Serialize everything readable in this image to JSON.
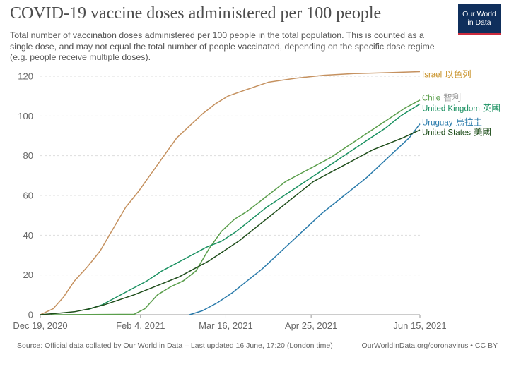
{
  "header": {
    "title": "COVID-19 vaccine doses administered per 100 people",
    "subtitle": "Total number of vaccination doses administered per 100 people in the total population. This is counted as a single dose, and may not equal the total number of people vaccinated, depending on the specific dose regime (e.g. people receive multiple doses).",
    "logo_line1": "Our World",
    "logo_line2": "in Data"
  },
  "footer": {
    "source": "Source: Official data collated by Our World in Data – Last updated 16 June, 17:20 (London time)",
    "credit": "OurWorldInData.org/coronavirus • CC BY"
  },
  "colors": {
    "israel": "#c5915f",
    "chile": "#5a9e4b",
    "uk": "#1a9161",
    "uruguay": "#2a7bab",
    "us": "#1e4d1a",
    "israel_label": "#c9932a",
    "chile_cjk": "#999999",
    "grid": "#dddddd",
    "axis": "#999999"
  },
  "chart_data": {
    "type": "line",
    "x_ticks": [
      "Dec 19, 2020",
      "Feb 4, 2021",
      "Mar 16, 2021",
      "Apr 25, 2021",
      "Jun 15, 2021"
    ],
    "x_range": [
      "2020-12-19",
      "2021-06-15"
    ],
    "ylim": [
      0,
      120
    ],
    "y_ticks": [
      0,
      20,
      40,
      60,
      80,
      100,
      120
    ],
    "grid": "horizontal dashed",
    "series": [
      {
        "name": "Israel",
        "name_cjk": "以色列",
        "values": [
          {
            "x": "2020-12-19",
            "y": 0
          },
          {
            "x": "2020-12-25",
            "y": 3
          },
          {
            "x": "2020-12-30",
            "y": 9
          },
          {
            "x": "2021-01-04",
            "y": 17
          },
          {
            "x": "2021-01-10",
            "y": 24
          },
          {
            "x": "2021-01-16",
            "y": 32
          },
          {
            "x": "2021-01-22",
            "y": 43
          },
          {
            "x": "2021-01-28",
            "y": 54
          },
          {
            "x": "2021-02-03",
            "y": 62
          },
          {
            "x": "2021-02-09",
            "y": 71
          },
          {
            "x": "2021-02-15",
            "y": 80
          },
          {
            "x": "2021-02-21",
            "y": 89
          },
          {
            "x": "2021-02-27",
            "y": 95
          },
          {
            "x": "2021-03-05",
            "y": 101
          },
          {
            "x": "2021-03-11",
            "y": 106
          },
          {
            "x": "2021-03-17",
            "y": 110
          },
          {
            "x": "2021-03-25",
            "y": 113
          },
          {
            "x": "2021-04-05",
            "y": 117
          },
          {
            "x": "2021-04-18",
            "y": 119
          },
          {
            "x": "2021-05-01",
            "y": 120.5
          },
          {
            "x": "2021-05-15",
            "y": 121.3
          },
          {
            "x": "2021-06-01",
            "y": 121.8
          },
          {
            "x": "2021-06-15",
            "y": 122.3
          }
        ]
      },
      {
        "name": "Chile",
        "name_cjk": "智利",
        "values": [
          {
            "x": "2020-12-24",
            "y": 0
          },
          {
            "x": "2021-02-01",
            "y": 0.2
          },
          {
            "x": "2021-02-06",
            "y": 3
          },
          {
            "x": "2021-02-12",
            "y": 10
          },
          {
            "x": "2021-02-18",
            "y": 14
          },
          {
            "x": "2021-02-24",
            "y": 17
          },
          {
            "x": "2021-03-02",
            "y": 22
          },
          {
            "x": "2021-03-08",
            "y": 33
          },
          {
            "x": "2021-03-14",
            "y": 42
          },
          {
            "x": "2021-03-20",
            "y": 48
          },
          {
            "x": "2021-03-26",
            "y": 52
          },
          {
            "x": "2021-04-01",
            "y": 57
          },
          {
            "x": "2021-04-07",
            "y": 62
          },
          {
            "x": "2021-04-13",
            "y": 67
          },
          {
            "x": "2021-04-20",
            "y": 71
          },
          {
            "x": "2021-04-27",
            "y": 75
          },
          {
            "x": "2021-05-04",
            "y": 79
          },
          {
            "x": "2021-05-11",
            "y": 84
          },
          {
            "x": "2021-05-18",
            "y": 89
          },
          {
            "x": "2021-05-25",
            "y": 94
          },
          {
            "x": "2021-06-01",
            "y": 99
          },
          {
            "x": "2021-06-08",
            "y": 104
          },
          {
            "x": "2021-06-15",
            "y": 108
          }
        ]
      },
      {
        "name": "United Kingdom",
        "name_cjk": "英國",
        "values": [
          {
            "x": "2021-01-10",
            "y": 2.5
          },
          {
            "x": "2021-01-17",
            "y": 5
          },
          {
            "x": "2021-01-24",
            "y": 9
          },
          {
            "x": "2021-01-31",
            "y": 13
          },
          {
            "x": "2021-02-07",
            "y": 17
          },
          {
            "x": "2021-02-14",
            "y": 22
          },
          {
            "x": "2021-02-21",
            "y": 26
          },
          {
            "x": "2021-02-28",
            "y": 30
          },
          {
            "x": "2021-03-07",
            "y": 34
          },
          {
            "x": "2021-03-14",
            "y": 37
          },
          {
            "x": "2021-03-21",
            "y": 42
          },
          {
            "x": "2021-03-28",
            "y": 48
          },
          {
            "x": "2021-04-04",
            "y": 54
          },
          {
            "x": "2021-04-11",
            "y": 59
          },
          {
            "x": "2021-04-18",
            "y": 64
          },
          {
            "x": "2021-04-25",
            "y": 69
          },
          {
            "x": "2021-05-02",
            "y": 74
          },
          {
            "x": "2021-05-09",
            "y": 79
          },
          {
            "x": "2021-05-16",
            "y": 84
          },
          {
            "x": "2021-05-23",
            "y": 89
          },
          {
            "x": "2021-05-30",
            "y": 94
          },
          {
            "x": "2021-06-06",
            "y": 100
          },
          {
            "x": "2021-06-15",
            "y": 106
          }
        ]
      },
      {
        "name": "Uruguay",
        "name_cjk": "烏拉圭",
        "values": [
          {
            "x": "2021-02-27",
            "y": 0
          },
          {
            "x": "2021-03-05",
            "y": 2
          },
          {
            "x": "2021-03-12",
            "y": 6
          },
          {
            "x": "2021-03-19",
            "y": 11
          },
          {
            "x": "2021-03-26",
            "y": 17
          },
          {
            "x": "2021-04-02",
            "y": 23
          },
          {
            "x": "2021-04-09",
            "y": 30
          },
          {
            "x": "2021-04-16",
            "y": 37
          },
          {
            "x": "2021-04-23",
            "y": 44
          },
          {
            "x": "2021-04-30",
            "y": 51
          },
          {
            "x": "2021-05-07",
            "y": 57
          },
          {
            "x": "2021-05-14",
            "y": 63
          },
          {
            "x": "2021-05-21",
            "y": 69
          },
          {
            "x": "2021-05-28",
            "y": 76
          },
          {
            "x": "2021-06-04",
            "y": 83
          },
          {
            "x": "2021-06-10",
            "y": 89
          },
          {
            "x": "2021-06-15",
            "y": 96
          }
        ]
      },
      {
        "name": "United States",
        "name_cjk": "美國",
        "values": [
          {
            "x": "2020-12-19",
            "y": 0
          },
          {
            "x": "2020-12-28",
            "y": 0.8
          },
          {
            "x": "2021-01-04",
            "y": 1.5
          },
          {
            "x": "2021-01-11",
            "y": 3
          },
          {
            "x": "2021-01-18",
            "y": 5
          },
          {
            "x": "2021-01-25",
            "y": 7.5
          },
          {
            "x": "2021-02-01",
            "y": 10
          },
          {
            "x": "2021-02-08",
            "y": 13
          },
          {
            "x": "2021-02-15",
            "y": 16
          },
          {
            "x": "2021-02-22",
            "y": 19
          },
          {
            "x": "2021-03-01",
            "y": 23
          },
          {
            "x": "2021-03-08",
            "y": 27
          },
          {
            "x": "2021-03-15",
            "y": 32
          },
          {
            "x": "2021-03-22",
            "y": 37
          },
          {
            "x": "2021-03-29",
            "y": 43
          },
          {
            "x": "2021-04-05",
            "y": 49
          },
          {
            "x": "2021-04-12",
            "y": 55
          },
          {
            "x": "2021-04-19",
            "y": 61
          },
          {
            "x": "2021-04-26",
            "y": 67
          },
          {
            "x": "2021-05-03",
            "y": 71
          },
          {
            "x": "2021-05-10",
            "y": 75
          },
          {
            "x": "2021-05-17",
            "y": 79
          },
          {
            "x": "2021-05-24",
            "y": 83
          },
          {
            "x": "2021-05-31",
            "y": 86
          },
          {
            "x": "2021-06-07",
            "y": 89
          },
          {
            "x": "2021-06-15",
            "y": 93
          }
        ]
      }
    ]
  }
}
